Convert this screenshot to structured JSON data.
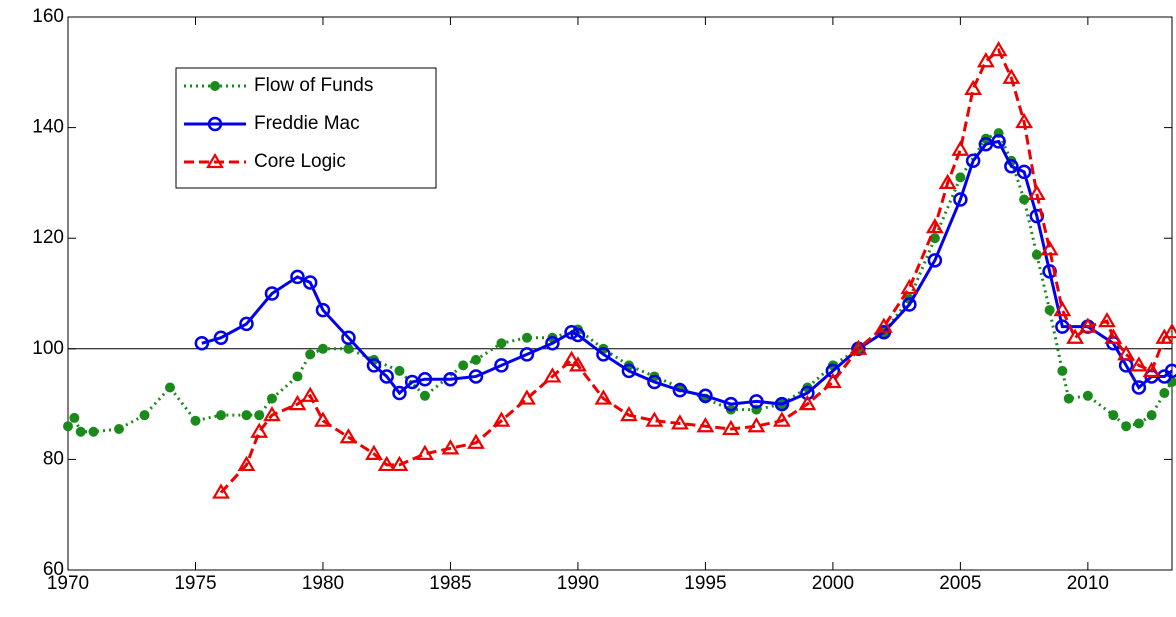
{
  "chart_data": {
    "type": "line",
    "xlim": [
      1970,
      2013.3
    ],
    "ylim": [
      60,
      160
    ],
    "xticks": [
      1970,
      1975,
      1980,
      1985,
      1990,
      1995,
      2000,
      2005,
      2010
    ],
    "yticks": [
      60,
      80,
      100,
      120,
      140,
      160
    ],
    "reference_line": 100,
    "legend": "upper left",
    "series": [
      {
        "name": "Flow of Funds",
        "color": "#1a8a1a",
        "marker": "dot",
        "dash": "dotted",
        "x": [
          1970,
          1970.25,
          1970.5,
          1971,
          1972,
          1973,
          1974,
          1975,
          1976,
          1977,
          1977.5,
          1978,
          1979,
          1979.5,
          1980,
          1981,
          1982,
          1983,
          1984,
          1985.5,
          1986,
          1987,
          1988,
          1989,
          1990,
          1991,
          1992,
          1993,
          1994,
          1995,
          1996,
          1997,
          1998,
          1999,
          2000,
          2001,
          2002,
          2003,
          2004,
          2005,
          2006,
          2006.5,
          2007,
          2007.5,
          2008,
          2008.5,
          2009,
          2009.25,
          2010,
          2011,
          2011.5,
          2012,
          2012.5,
          2013,
          2013.3
        ],
        "values": [
          86,
          87.5,
          85,
          85,
          85.5,
          88,
          93,
          87,
          88,
          88,
          88,
          91,
          95,
          99,
          100,
          100,
          98,
          96,
          91.5,
          97,
          98,
          101,
          102,
          102,
          103.5,
          100,
          97,
          95,
          93,
          91,
          89,
          89,
          90,
          93,
          97,
          100,
          103,
          109,
          120,
          131,
          138,
          139,
          134,
          127,
          117,
          107,
          96,
          91,
          91.5,
          88,
          86,
          86.5,
          88,
          92,
          94
        ]
      },
      {
        "name": "Freddie Mac",
        "color": "#0000ee",
        "marker": "circle",
        "dash": "solid",
        "x": [
          1975.25,
          1976,
          1977,
          1978,
          1979,
          1979.5,
          1980,
          1981,
          1982,
          1982.5,
          1983,
          1983.5,
          1984,
          1985,
          1986,
          1987,
          1988,
          1989,
          1989.75,
          1990,
          1991,
          1992,
          1993,
          1994,
          1995,
          1996,
          1997,
          1998,
          1999,
          2000,
          2001,
          2002,
          2003,
          2004,
          2005,
          2005.5,
          2006,
          2006.5,
          2007,
          2007.5,
          2008,
          2008.5,
          2009,
          2010,
          2011,
          2011.5,
          2012,
          2012.5,
          2013,
          2013.3
        ],
        "values": [
          101,
          102,
          104.5,
          110,
          113,
          112,
          107,
          102,
          97,
          95,
          92,
          94,
          94.5,
          94.5,
          95,
          97,
          99,
          101,
          103,
          102.5,
          99,
          96,
          94,
          92.5,
          91.5,
          90,
          90.5,
          90,
          92,
          96,
          100,
          103,
          108,
          116,
          127,
          134,
          137,
          137.5,
          133,
          132,
          124,
          114,
          104,
          104,
          101,
          97,
          93,
          95,
          95,
          96
        ]
      },
      {
        "name": "Core Logic",
        "color": "#ee0000",
        "marker": "triangle",
        "dash": "dashed",
        "x": [
          1976,
          1977,
          1977.5,
          1978,
          1979,
          1979.5,
          1980,
          1981,
          1982,
          1982.5,
          1983,
          1984,
          1985,
          1986,
          1987,
          1988,
          1989,
          1989.75,
          1990,
          1991,
          1992,
          1993,
          1994,
          1995,
          1996,
          1997,
          1998,
          1999,
          2000,
          2001,
          2002,
          2003,
          2004,
          2004.5,
          2005,
          2005.5,
          2006,
          2006.5,
          2007,
          2007.5,
          2008,
          2008.5,
          2009,
          2009.5,
          2010,
          2010.75,
          2011,
          2011.5,
          2012,
          2012.5,
          2013,
          2013.3
        ],
        "values": [
          74,
          79,
          85,
          88,
          90,
          91.5,
          87,
          84,
          81,
          79,
          79,
          81,
          82,
          83,
          87,
          91,
          95,
          98,
          97,
          91,
          88,
          87,
          86.5,
          86,
          85.5,
          86,
          87,
          90,
          94,
          100,
          104,
          111,
          122,
          130,
          136,
          147,
          152,
          154,
          149,
          141,
          128,
          118,
          107,
          102,
          104,
          105,
          102,
          99,
          97,
          96,
          102,
          103
        ]
      }
    ]
  }
}
